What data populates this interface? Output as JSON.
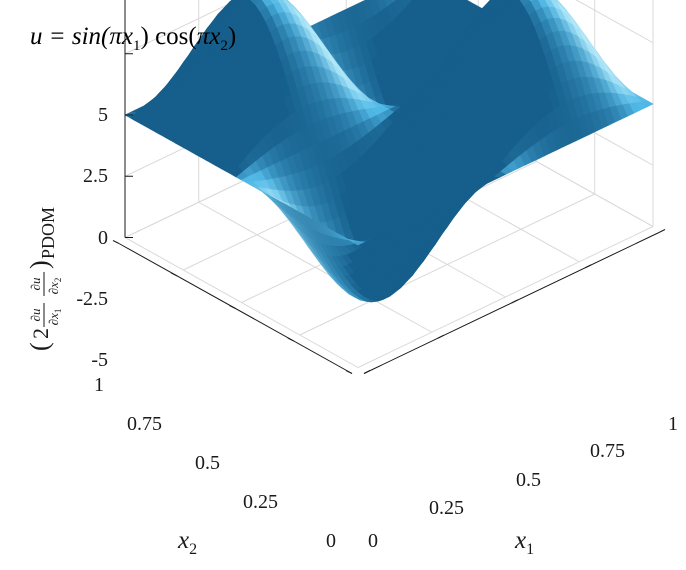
{
  "chart_data": {
    "type": "surface",
    "title": {
      "prefix": "u = sin(",
      "pi1": "π",
      "x1": "x",
      "x1_sub": "1",
      "mid": ") cos(",
      "pi2": "π",
      "x2": "x",
      "x2_sub": "2",
      "suffix": ")"
    },
    "function": "2 * (du/dx1) * (du/dx2) for u = sin(pi x1) cos(pi x2)",
    "x1_axis": {
      "label": "x",
      "sub": "1",
      "range": [
        0,
        1
      ],
      "ticks": [
        "0",
        "0.25",
        "0.5",
        "0.75",
        "1"
      ]
    },
    "x2_axis": {
      "label": "x",
      "sub": "2",
      "range": [
        0,
        1
      ],
      "ticks": [
        "0",
        "0.25",
        "0.5",
        "0.75",
        "1"
      ]
    },
    "z_axis": {
      "label": {
        "lparen": "(",
        "coef": "2",
        "du1": "∂u",
        "dx1": "∂x",
        "dx1_sub": "1",
        "du2": "∂u",
        "dx2": "∂x",
        "dx2_sub": "2",
        "rparen": ")",
        "sub": "PDOM"
      },
      "range": [
        -5,
        5
      ],
      "ticks": [
        "-5",
        "-2.5",
        "0",
        "2.5",
        "5"
      ]
    },
    "grid": true,
    "colors": {
      "surface": "#4fb8e6",
      "surface_light": "#bdf1ff",
      "surface_dark": "#1b6a95",
      "grid": "#d9d9d9",
      "axis": "#1a1a1a"
    }
  }
}
